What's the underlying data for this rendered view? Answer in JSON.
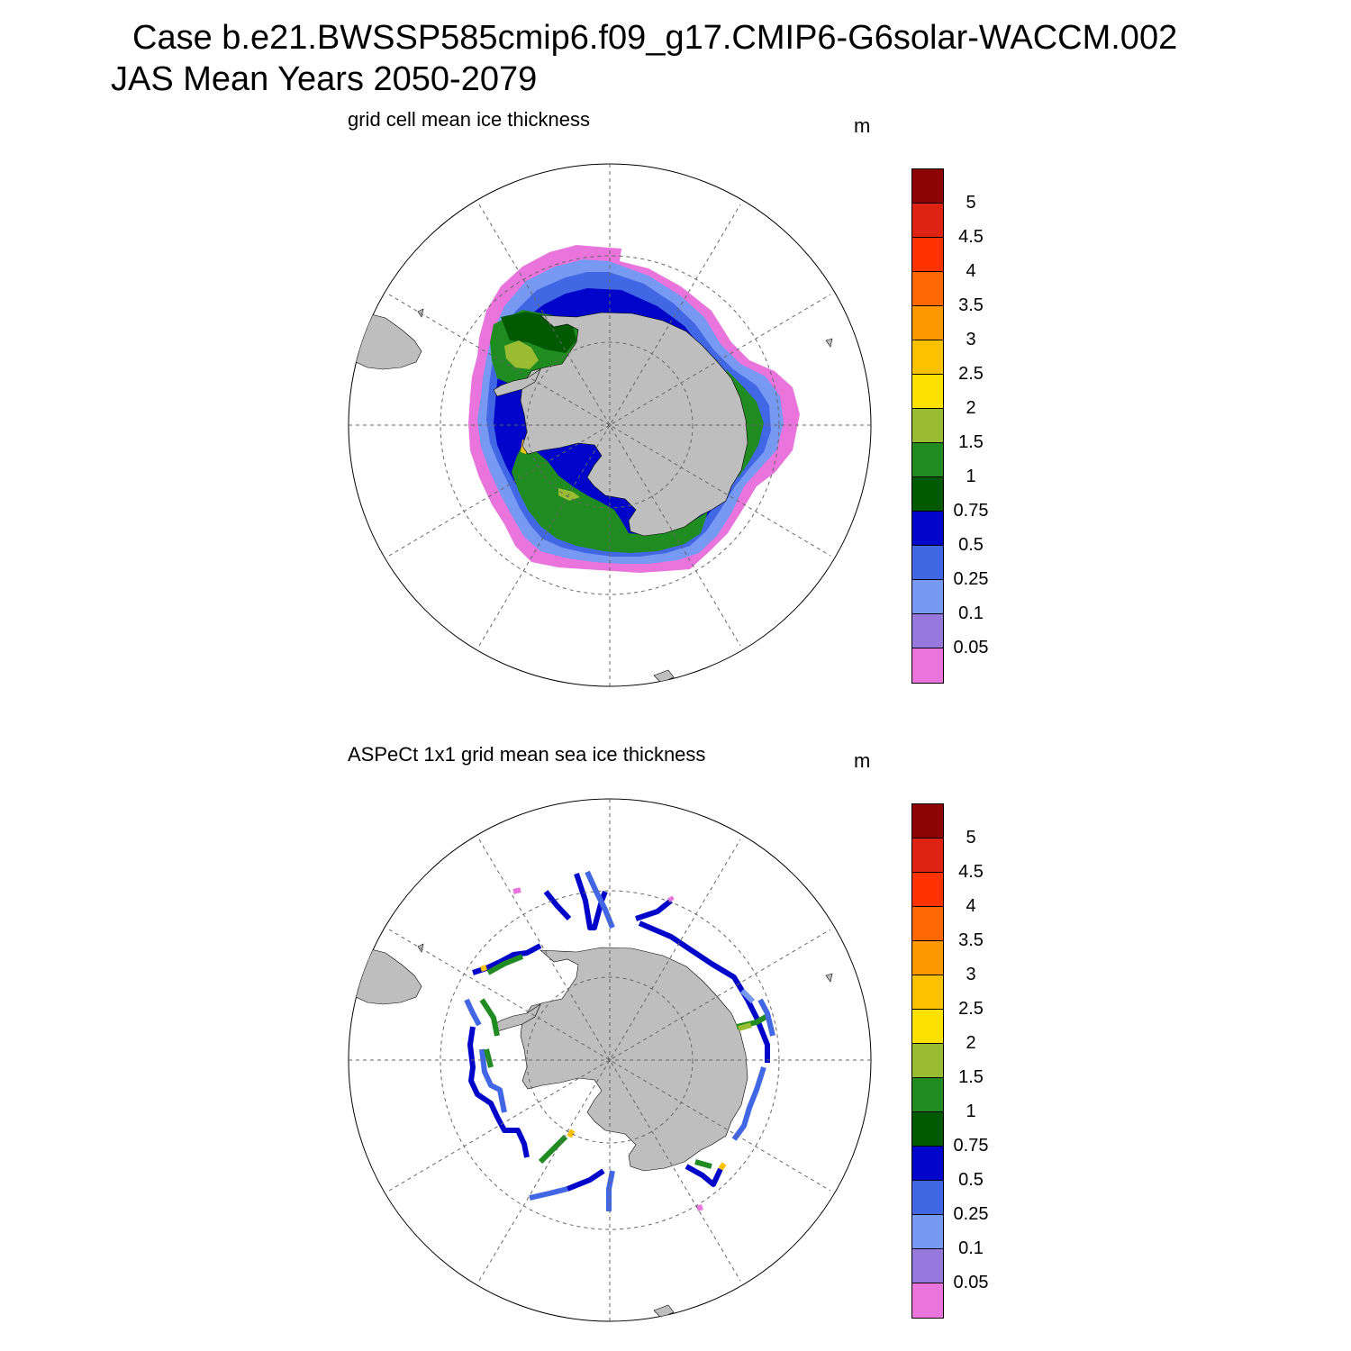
{
  "title": {
    "line1": "Case b.e21.BWSSP585cmip6.f09_g17.CMIP6-G6solar-WACCM.002",
    "line2": "JAS Mean   Years 2050-2079"
  },
  "panels": [
    {
      "title": "grid cell mean ice thickness",
      "unit": "m"
    },
    {
      "title": "ASPeCt 1x1 grid mean sea ice thickness",
      "unit": "m"
    }
  ],
  "colorbar": {
    "colors": [
      "#e874dc",
      "#9778dc",
      "#7799f1",
      "#4267e4",
      "#0005c9",
      "#015901",
      "#208b20",
      "#9abc33",
      "#fde201",
      "#fcc101",
      "#fe9800",
      "#fe6701",
      "#fe3300",
      "#df2312",
      "#8e0303"
    ],
    "labels": [
      "0.05",
      "0.1",
      "0.25",
      "0.5",
      "0.75",
      "1",
      "1.5",
      "2",
      "2.5",
      "3",
      "3.5",
      "4",
      "4.5",
      "5"
    ]
  },
  "colors": {
    "land": "#bebebe",
    "grid": "#666666"
  },
  "chart_data": [
    {
      "type": "heatmap",
      "title": "grid cell mean ice thickness",
      "units": "m",
      "projection": "south polar stereographic",
      "levels": [
        0.05,
        0.1,
        0.25,
        0.5,
        0.75,
        1,
        1.5,
        2,
        2.5,
        3,
        3.5,
        4,
        4.5,
        5
      ],
      "ice_bands": [
        {
          "range": "<0.05",
          "description": "thin outer edge of pack"
        },
        {
          "range": "0.25-0.5",
          "description": "outer pack"
        },
        {
          "range": "0.5-0.75",
          "description": "middle pack"
        },
        {
          "range": "1-1.5",
          "description": "Weddell and Ross Sea interior"
        },
        {
          "range": "1.5-2",
          "description": "western Weddell near peninsula"
        },
        {
          "range": "2.5-3",
          "description": "isolated coastal cells"
        }
      ]
    },
    {
      "type": "heatmap",
      "title": "ASPeCt 1x1 grid mean sea ice thickness",
      "units": "m",
      "projection": "south polar stereographic",
      "levels": [
        0.05,
        0.1,
        0.25,
        0.5,
        0.75,
        1,
        1.5,
        2,
        2.5,
        3,
        3.5,
        4,
        4.5,
        5
      ],
      "observations": "ship-based tracks around Antarctica, mostly 0.25-1 m, some 1-2 m, rare 2-3 m"
    }
  ]
}
